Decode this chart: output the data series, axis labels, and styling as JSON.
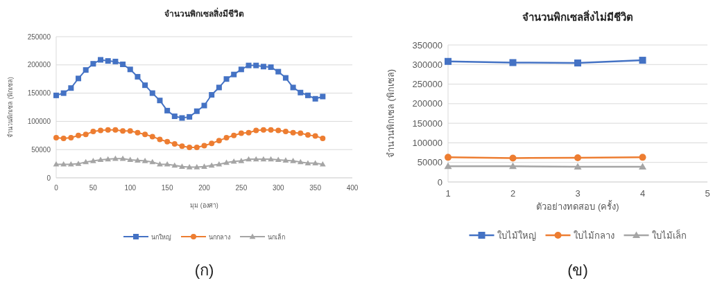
{
  "chart_data": [
    {
      "type": "line",
      "title": "จำนวนพิกเซลสิ่งมีชีวิต",
      "xlabel": "มุม (องศา)",
      "ylabel": "จำนวนพิกเซล (พิกเซล)",
      "x": [
        0,
        10,
        20,
        30,
        40,
        50,
        60,
        70,
        80,
        90,
        100,
        110,
        120,
        130,
        140,
        150,
        160,
        170,
        180,
        190,
        200,
        210,
        220,
        230,
        240,
        250,
        260,
        270,
        280,
        290,
        300,
        310,
        320,
        330,
        340,
        350,
        360
      ],
      "series": [
        {
          "name": "นกใหญ่",
          "color": "#4472c4",
          "marker": "square",
          "values": [
            146000,
            150000,
            159000,
            176000,
            191000,
            202000,
            209000,
            207000,
            206000,
            201000,
            192000,
            179000,
            164000,
            150000,
            137000,
            119000,
            109000,
            106000,
            108000,
            118000,
            128000,
            147000,
            160000,
            175000,
            183000,
            192000,
            199000,
            199000,
            197000,
            196000,
            188000,
            177000,
            160000,
            151000,
            146000,
            140000,
            144000
          ]
        },
        {
          "name": "นกกลาง",
          "color": "#ed7d31",
          "marker": "circle",
          "values": [
            71000,
            70000,
            71000,
            75000,
            77000,
            82000,
            84000,
            85000,
            85000,
            83000,
            83000,
            80000,
            77000,
            73000,
            68000,
            64000,
            60000,
            56000,
            54000,
            54000,
            57000,
            61000,
            66000,
            71000,
            75000,
            79000,
            80000,
            84000,
            85000,
            85000,
            84000,
            82000,
            80000,
            79000,
            76000,
            74000,
            70000
          ]
        },
        {
          "name": "นกเล็ก",
          "color": "#a5a5a5",
          "marker": "triangle",
          "values": [
            24000,
            24000,
            24000,
            25000,
            28000,
            30000,
            32000,
            33000,
            34000,
            34000,
            32000,
            31000,
            30000,
            28000,
            24000,
            24000,
            22000,
            20000,
            19000,
            19000,
            20000,
            22000,
            24000,
            27000,
            29000,
            30000,
            33000,
            33000,
            33000,
            33000,
            32000,
            31000,
            30000,
            28000,
            26000,
            26000,
            24000
          ]
        }
      ],
      "xlim": [
        0,
        400
      ],
      "xticks": [
        0,
        50,
        100,
        150,
        200,
        250,
        300,
        350,
        400
      ],
      "ylim": [
        0,
        250000
      ],
      "yticks": [
        0,
        50000,
        100000,
        150000,
        200000,
        250000
      ],
      "grid": "y",
      "legend": "bottom",
      "annotations": [
        "(ก)"
      ]
    },
    {
      "type": "line",
      "title": "จำนวนพิกเซลสิ่งไม่มีชีวิต",
      "xlabel": "ตัวอย่างทดสอบ (ครั้ง)",
      "ylabel": "จำนวนพิกเซล (พิกเซล)",
      "x": [
        1,
        2,
        3,
        4
      ],
      "series": [
        {
          "name": "ใบไม้ใหญ่",
          "color": "#4472c4",
          "marker": "square",
          "values": [
            308000,
            305000,
            304000,
            311000
          ]
        },
        {
          "name": "ใบไม้กลาง",
          "color": "#ed7d31",
          "marker": "circle",
          "values": [
            63000,
            61000,
            62000,
            63000
          ]
        },
        {
          "name": "ใบไม้เล็ก",
          "color": "#a5a5a5",
          "marker": "triangle",
          "values": [
            40000,
            40000,
            39000,
            39000
          ]
        }
      ],
      "xlim": [
        1,
        5
      ],
      "xticks": [
        1,
        2,
        3,
        4,
        5
      ],
      "ylim": [
        0,
        350000
      ],
      "yticks": [
        0,
        50000,
        100000,
        150000,
        200000,
        250000,
        300000,
        350000
      ],
      "grid": "y",
      "legend": "bottom",
      "annotations": [
        "(ข)"
      ]
    }
  ]
}
